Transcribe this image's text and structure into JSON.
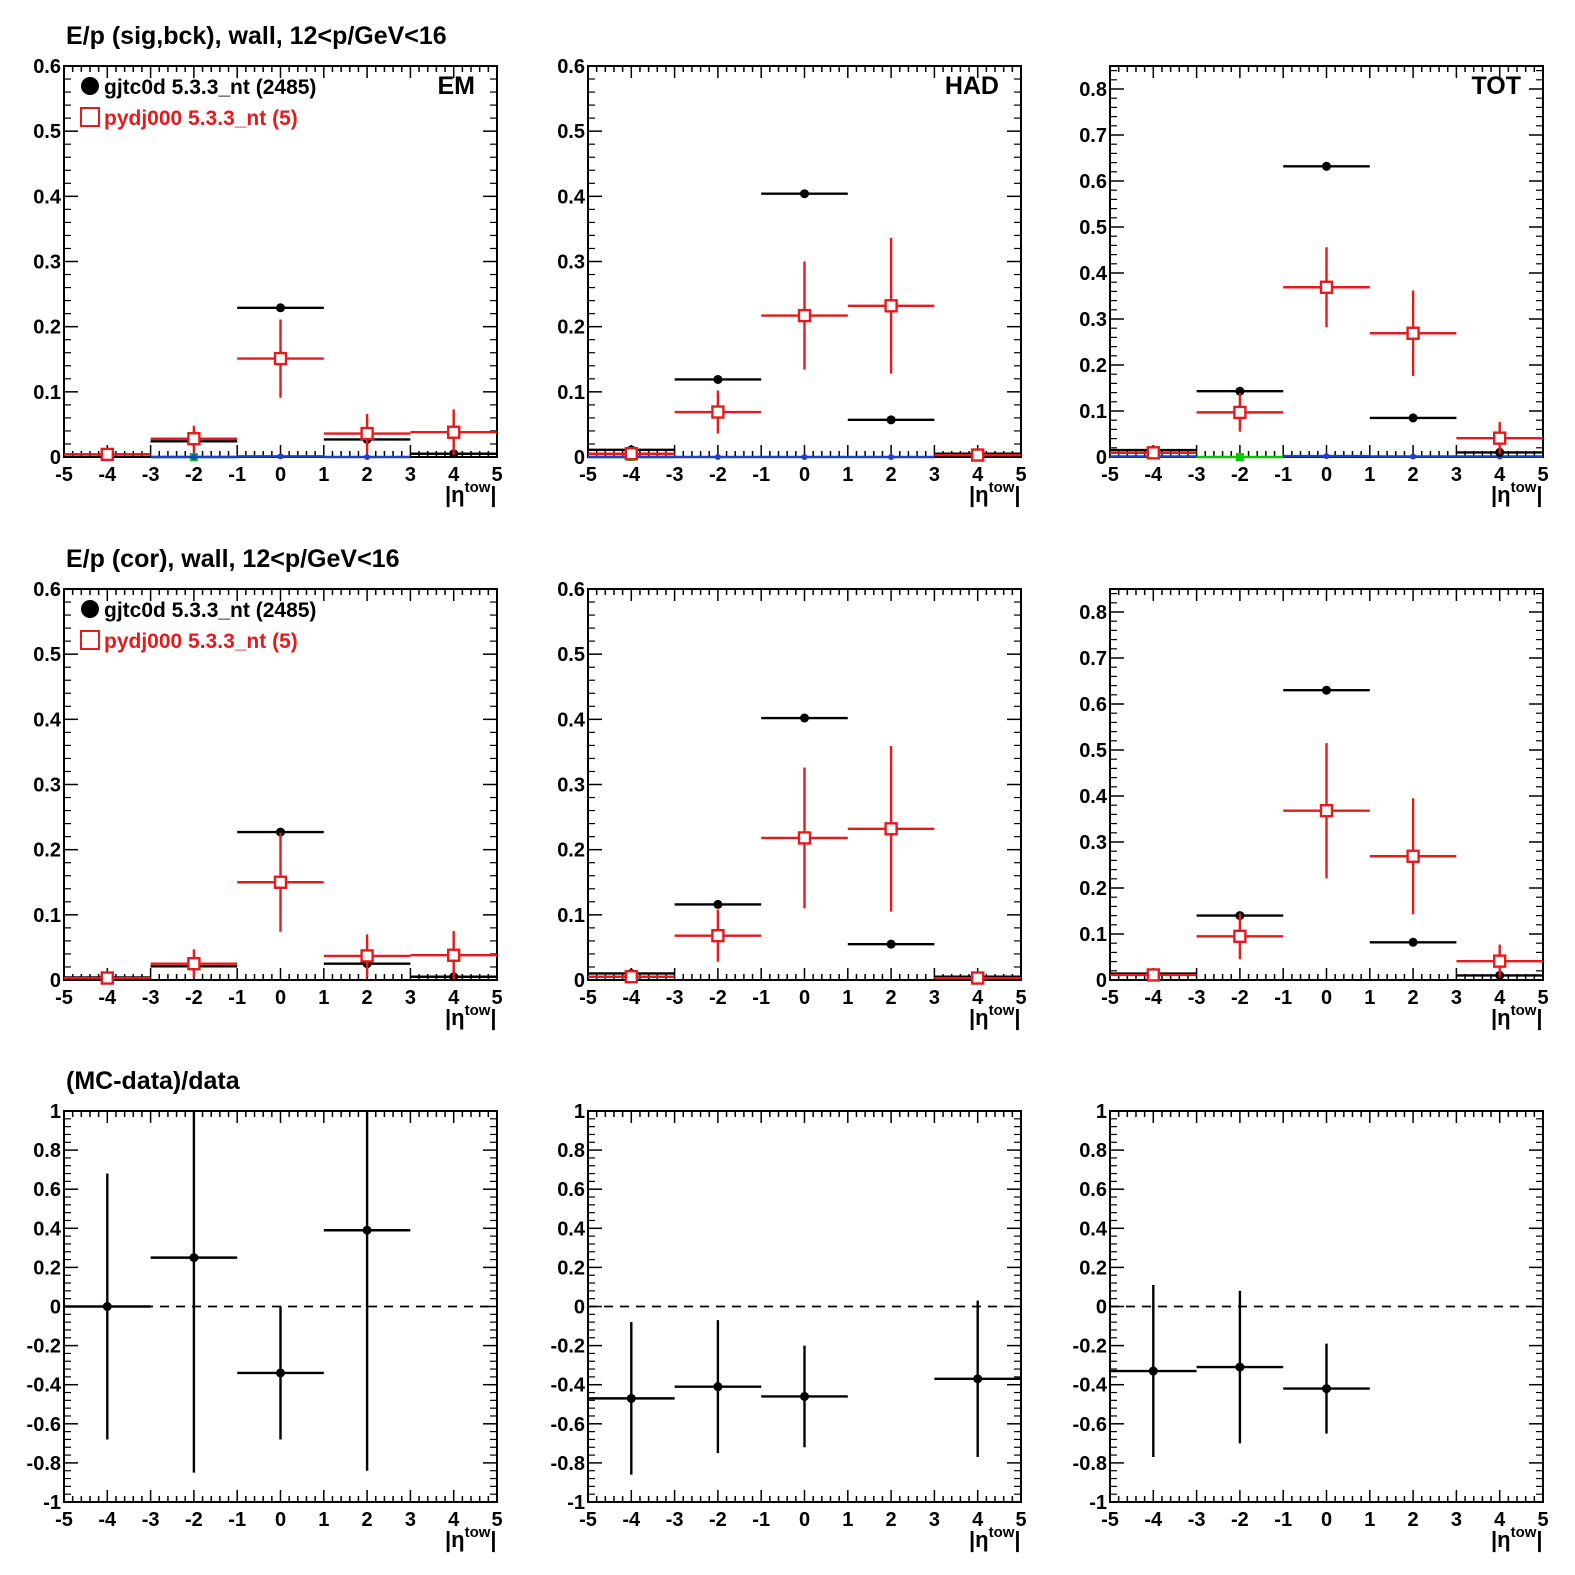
{
  "colors": {
    "data": "#000000",
    "mc": "#e41a1c",
    "signal": "#00cc00",
    "background": "#1f3fd0"
  },
  "row_titles": [
    "E/p (sig,bck), wall, 12<p/GeV<16",
    "E/p (cor), wall, 12<p/GeV<16",
    "(MC-data)/data"
  ],
  "legend": {
    "data": "gjtc0d 5.3.3_nt (2485)",
    "mc": "pydj000 5.3.3_nt (5)"
  },
  "xlabel_base": "|η",
  "xlabel_sup": "tow",
  "xlabel_end": "|",
  "chart_data": [
    {
      "type": "scatter",
      "row": 0,
      "col": 0,
      "label": "EM",
      "xlim": [
        -5,
        5
      ],
      "ylim": [
        0,
        0.6
      ],
      "yticks": [
        0,
        0.1,
        0.2,
        0.3,
        0.4,
        0.5,
        0.6
      ],
      "yticklabels": [
        "0",
        "0.1",
        "0.2",
        "0.3",
        "0.4",
        "0.5",
        "0.6"
      ],
      "xticks": [
        -5,
        -4,
        -3,
        -2,
        -1,
        0,
        1,
        2,
        3,
        4,
        5
      ],
      "has_legend": true,
      "series": [
        {
          "name": "gjtc0d 5.3.3_nt (2485)",
          "kind": "data",
          "x": [
            -4,
            -2,
            0,
            2,
            4
          ],
          "xerr": 1,
          "y": [
            0.004,
            0.024,
            0.229,
            0.027,
            0.005
          ],
          "yerr": [
            0.001,
            0.002,
            0.002,
            0.002,
            0.001
          ]
        },
        {
          "name": "pydj000 5.3.3_nt (5)",
          "kind": "mc",
          "x": [
            -4,
            -2,
            0,
            2,
            4
          ],
          "xerr": 1,
          "y": [
            0.004,
            0.028,
            0.151,
            0.036,
            0.038
          ],
          "yerr": [
            0.003,
            0.02,
            0.06,
            0.03,
            0.035
          ]
        },
        {
          "kind": "background",
          "x": [
            -2,
            0,
            2
          ],
          "xerr": 1,
          "y": [
            0,
            0.001,
            0
          ],
          "yerr": [
            0,
            0,
            0
          ]
        },
        {
          "kind": "signal",
          "x": [
            -2
          ],
          "xerr": 1,
          "y": [
            0
          ],
          "yerr": [
            0
          ]
        }
      ]
    },
    {
      "type": "scatter",
      "row": 0,
      "col": 1,
      "label": "HAD",
      "xlim": [
        -5,
        5
      ],
      "ylim": [
        0,
        0.6
      ],
      "yticks": [
        0,
        0.1,
        0.2,
        0.3,
        0.4,
        0.5,
        0.6
      ],
      "yticklabels": [
        "0",
        "0.1",
        "0.2",
        "0.3",
        "0.4",
        "0.5",
        "0.6"
      ],
      "xticks": [
        -5,
        -4,
        -3,
        -2,
        -1,
        0,
        1,
        2,
        3,
        4,
        5
      ],
      "has_legend": false,
      "series": [
        {
          "kind": "data",
          "x": [
            -4,
            -2,
            0,
            2,
            4
          ],
          "xerr": 1,
          "y": [
            0.011,
            0.119,
            0.404,
            0.057,
            0.005
          ],
          "yerr": [
            0.001,
            0.002,
            0.003,
            0.002,
            0.001
          ]
        },
        {
          "kind": "mc",
          "x": [
            -4,
            -2,
            0,
            2,
            4
          ],
          "xerr": 1,
          "y": [
            0.005,
            0.069,
            0.217,
            0.232,
            0.003
          ],
          "yerr": [
            0.003,
            0.033,
            0.083,
            0.104,
            0.002
          ]
        },
        {
          "kind": "background",
          "x": [
            -4,
            -2,
            0,
            2
          ],
          "xerr": 1,
          "y": [
            0,
            0,
            0,
            0
          ],
          "yerr": [
            0,
            0,
            0,
            0
          ]
        },
        {
          "kind": "signal",
          "x": [
            -4
          ],
          "xerr": 1,
          "y": [
            0
          ],
          "yerr": [
            0
          ]
        }
      ]
    },
    {
      "type": "scatter",
      "row": 0,
      "col": 2,
      "label": "TOT",
      "xlim": [
        -5,
        5
      ],
      "ylim": [
        0,
        0.85
      ],
      "yticks": [
        0,
        0.1,
        0.2,
        0.3,
        0.4,
        0.5,
        0.6,
        0.7,
        0.8
      ],
      "yticklabels": [
        "0",
        "0.1",
        "0.2",
        "0.3",
        "0.4",
        "0.5",
        "0.6",
        "0.7",
        "0.8"
      ],
      "xticks": [
        -5,
        -4,
        -3,
        -2,
        -1,
        0,
        1,
        2,
        3,
        4,
        5
      ],
      "has_legend": false,
      "series": [
        {
          "kind": "data",
          "x": [
            -4,
            -2,
            0,
            2,
            4
          ],
          "xerr": 1,
          "y": [
            0.015,
            0.143,
            0.632,
            0.085,
            0.01
          ],
          "yerr": [
            0.002,
            0.003,
            0.004,
            0.002,
            0.001
          ]
        },
        {
          "kind": "mc",
          "x": [
            -4,
            -2,
            0,
            2,
            4
          ],
          "xerr": 1,
          "y": [
            0.009,
            0.097,
            0.369,
            0.269,
            0.041
          ],
          "yerr": [
            0.005,
            0.042,
            0.087,
            0.093,
            0.035
          ]
        },
        {
          "kind": "background",
          "x": [
            -4,
            0,
            2,
            4
          ],
          "xerr": 1,
          "y": [
            0.001,
            0.002,
            0.001,
            0.001
          ],
          "yerr": [
            0,
            0,
            0,
            0
          ]
        },
        {
          "kind": "signal",
          "x": [
            -2
          ],
          "xerr": 1,
          "y": [
            0
          ],
          "yerr": [
            0
          ]
        }
      ]
    },
    {
      "type": "scatter",
      "row": 1,
      "col": 0,
      "xlim": [
        -5,
        5
      ],
      "ylim": [
        0,
        0.6
      ],
      "yticks": [
        0,
        0.1,
        0.2,
        0.3,
        0.4,
        0.5,
        0.6
      ],
      "yticklabels": [
        "0",
        "0.1",
        "0.2",
        "0.3",
        "0.4",
        "0.5",
        "0.6"
      ],
      "xticks": [
        -5,
        -4,
        -3,
        -2,
        -1,
        0,
        1,
        2,
        3,
        4,
        5
      ],
      "has_legend": true,
      "series": [
        {
          "name": "gjtc0d 5.3.3_nt (2485)",
          "kind": "data",
          "x": [
            -4,
            -2,
            0,
            2,
            4
          ],
          "xerr": 1,
          "y": [
            0.004,
            0.021,
            0.227,
            0.025,
            0.005
          ],
          "yerr": [
            0.001,
            0.002,
            0.002,
            0.002,
            0.001
          ]
        },
        {
          "name": "pydj000 5.3.3_nt (5)",
          "kind": "mc",
          "x": [
            -4,
            -2,
            0,
            2,
            4
          ],
          "xerr": 1,
          "y": [
            0.003,
            0.025,
            0.15,
            0.037,
            0.038
          ],
          "yerr": [
            0.003,
            0.022,
            0.076,
            0.033,
            0.037
          ]
        }
      ]
    },
    {
      "type": "scatter",
      "row": 1,
      "col": 1,
      "xlim": [
        -5,
        5
      ],
      "ylim": [
        0,
        0.6
      ],
      "yticks": [
        0,
        0.1,
        0.2,
        0.3,
        0.4,
        0.5,
        0.6
      ],
      "yticklabels": [
        "0",
        "0.1",
        "0.2",
        "0.3",
        "0.4",
        "0.5",
        "0.6"
      ],
      "xticks": [
        -5,
        -4,
        -3,
        -2,
        -1,
        0,
        1,
        2,
        3,
        4,
        5
      ],
      "has_legend": false,
      "series": [
        {
          "kind": "data",
          "x": [
            -4,
            -2,
            0,
            2,
            4
          ],
          "xerr": 1,
          "y": [
            0.01,
            0.116,
            0.402,
            0.055,
            0.005
          ],
          "yerr": [
            0.001,
            0.002,
            0.006,
            0.002,
            0.001
          ]
        },
        {
          "kind": "mc",
          "x": [
            -4,
            -2,
            0,
            2,
            4
          ],
          "xerr": 1,
          "y": [
            0.005,
            0.068,
            0.218,
            0.232,
            0.003
          ],
          "yerr": [
            0.003,
            0.04,
            0.108,
            0.127,
            0.002
          ]
        }
      ]
    },
    {
      "type": "scatter",
      "row": 1,
      "col": 2,
      "xlim": [
        -5,
        5
      ],
      "ylim": [
        0,
        0.85
      ],
      "yticks": [
        0,
        0.1,
        0.2,
        0.3,
        0.4,
        0.5,
        0.6,
        0.7,
        0.8
      ],
      "yticklabels": [
        "0",
        "0.1",
        "0.2",
        "0.3",
        "0.4",
        "0.5",
        "0.6",
        "0.7",
        "0.8"
      ],
      "xticks": [
        -5,
        -4,
        -3,
        -2,
        -1,
        0,
        1,
        2,
        3,
        4,
        5
      ],
      "has_legend": false,
      "series": [
        {
          "kind": "data",
          "x": [
            -4,
            -2,
            0,
            2,
            4
          ],
          "xerr": 1,
          "y": [
            0.014,
            0.14,
            0.63,
            0.082,
            0.01
          ],
          "yerr": [
            0.002,
            0.003,
            0.004,
            0.002,
            0.001
          ]
        },
        {
          "kind": "mc",
          "x": [
            -4,
            -2,
            0,
            2,
            4
          ],
          "xerr": 1,
          "y": [
            0.011,
            0.095,
            0.368,
            0.269,
            0.041
          ],
          "yerr": [
            0.006,
            0.05,
            0.147,
            0.126,
            0.036
          ]
        }
      ]
    },
    {
      "type": "scatter",
      "row": 2,
      "col": 0,
      "xlim": [
        -5,
        5
      ],
      "ylim": [
        -1,
        1
      ],
      "yticks": [
        -1,
        -0.8,
        -0.6,
        -0.4,
        -0.2,
        0,
        0.2,
        0.4,
        0.6,
        0.8,
        1
      ],
      "yticklabels": [
        "-1",
        "-0.8",
        "-0.6",
        "-0.4",
        "-0.2",
        "0",
        "0.2",
        "0.4",
        "0.6",
        "0.8",
        "1"
      ],
      "xticks": [
        -5,
        -4,
        -3,
        -2,
        -1,
        0,
        1,
        2,
        3,
        4,
        5
      ],
      "has_legend": false,
      "ref_line": 0,
      "series": [
        {
          "kind": "data",
          "x": [
            -4,
            -2,
            0,
            2
          ],
          "xerr": 1,
          "y": [
            0.0,
            0.25,
            -0.34,
            0.39
          ],
          "yerr": [
            0.68,
            1.1,
            0.34,
            1.23
          ]
        }
      ]
    },
    {
      "type": "scatter",
      "row": 2,
      "col": 1,
      "xlim": [
        -5,
        5
      ],
      "ylim": [
        -1,
        1
      ],
      "yticks": [
        -1,
        -0.8,
        -0.6,
        -0.4,
        -0.2,
        0,
        0.2,
        0.4,
        0.6,
        0.8,
        1
      ],
      "yticklabels": [
        "-1",
        "-0.8",
        "-0.6",
        "-0.4",
        "-0.2",
        "0",
        "0.2",
        "0.4",
        "0.6",
        "0.8",
        "1"
      ],
      "xticks": [
        -5,
        -4,
        -3,
        -2,
        -1,
        0,
        1,
        2,
        3,
        4,
        5
      ],
      "has_legend": false,
      "ref_line": 0,
      "series": [
        {
          "kind": "data",
          "x": [
            -4,
            -2,
            0,
            4
          ],
          "xerr": 1,
          "y": [
            -0.47,
            -0.41,
            -0.46,
            -0.37
          ],
          "yerr": [
            0.39,
            0.34,
            0.26,
            0.4
          ]
        }
      ]
    },
    {
      "type": "scatter",
      "row": 2,
      "col": 2,
      "xlim": [
        -5,
        5
      ],
      "ylim": [
        -1,
        1
      ],
      "yticks": [
        -1,
        -0.8,
        -0.6,
        -0.4,
        -0.2,
        0,
        0.2,
        0.4,
        0.6,
        0.8,
        1
      ],
      "yticklabels": [
        "-1",
        "-0.8",
        "-0.6",
        "-0.4",
        "-0.2",
        "0",
        "0.2",
        "0.4",
        "0.6",
        "0.8",
        "1"
      ],
      "xticks": [
        -5,
        -4,
        -3,
        -2,
        -1,
        0,
        1,
        2,
        3,
        4,
        5
      ],
      "has_legend": false,
      "ref_line": 0,
      "series": [
        {
          "kind": "data",
          "x": [
            -4,
            -2,
            0
          ],
          "xerr": 1,
          "y": [
            -0.33,
            -0.31,
            -0.42
          ],
          "yerr": [
            0.44,
            0.39,
            0.23
          ]
        }
      ]
    }
  ]
}
